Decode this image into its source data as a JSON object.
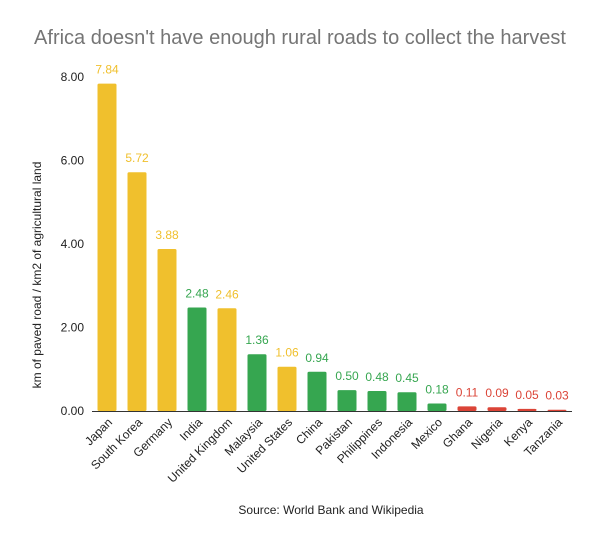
{
  "chart_data": {
    "type": "bar",
    "title": "Africa doesn't have enough rural roads to collect the harvest",
    "ylabel": "km of paved road / km2 of agricultural land",
    "xlabel": "Source: World Bank and Wikipedia",
    "ylim": [
      0,
      8
    ],
    "yticks": [
      "0.00",
      "2.00",
      "4.00",
      "6.00",
      "8.00"
    ],
    "grid": false,
    "categories": [
      "Japan",
      "South Korea",
      "Germany",
      "India",
      "United Kingdom",
      "Malaysia",
      "United States",
      "China",
      "Pakistan",
      "Philippines",
      "Indonesia",
      "Mexico",
      "Ghana",
      "Nigeria",
      "Kenya",
      "Tanzania"
    ],
    "values": [
      7.84,
      5.72,
      3.88,
      2.48,
      2.46,
      1.36,
      1.06,
      0.94,
      0.5,
      0.48,
      0.45,
      0.18,
      0.11,
      0.09,
      0.05,
      0.03
    ],
    "labels": [
      "7.84",
      "5.72",
      "3.88",
      "2.48",
      "2.46",
      "1.36",
      "1.06",
      "0.94",
      "0.50",
      "0.48",
      "0.45",
      "0.18",
      "0.11",
      "0.09",
      "0.05",
      "0.03"
    ],
    "bar_colors": [
      "#f0c02d",
      "#f0c02d",
      "#f0c02d",
      "#36a650",
      "#f0c02d",
      "#36a650",
      "#f0c02d",
      "#36a650",
      "#36a650",
      "#36a650",
      "#36a650",
      "#36a650",
      "#db4437",
      "#db4437",
      "#db4437",
      "#db4437"
    ],
    "axis_color": "#333333"
  }
}
